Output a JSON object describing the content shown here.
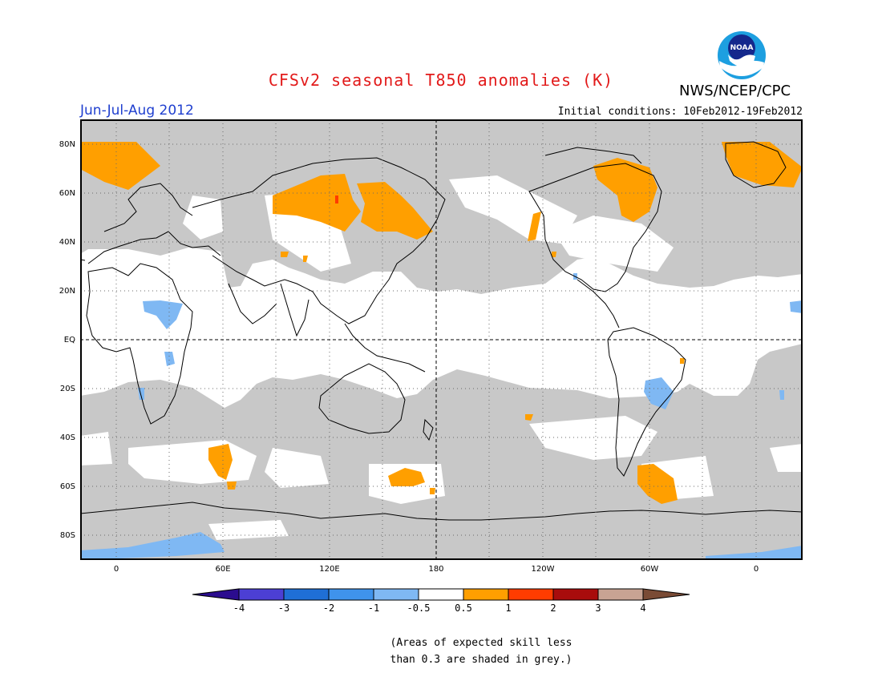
{
  "title": "CFSv2 seasonal T850 anomalies (K)",
  "season": "Jun-Jul-Aug 2012",
  "agency": "NWS/NCEP/CPC",
  "logo_text": "NOAA",
  "initial_conditions": "Initial conditions: 10Feb2012-19Feb2012",
  "lat_labels": [
    "80N",
    "60N",
    "40N",
    "20N",
    "EQ",
    "20S",
    "40S",
    "60S",
    "80S"
  ],
  "lon_labels": [
    "0",
    "60E",
    "120E",
    "180",
    "120W",
    "60W",
    "0"
  ],
  "legend": {
    "tick_labels": [
      "-4",
      "-3",
      "-2",
      "-1",
      "-0.5",
      "0.5",
      "1",
      "2",
      "3",
      "4"
    ],
    "colors": [
      "#2b0c8f",
      "#4c3fd4",
      "#1f6fd6",
      "#3f93ec",
      "#7fb8f3",
      "#ffffff",
      "#ff9f00",
      "#ff3c00",
      "#a80c0c",
      "#c8a393",
      "#7a4b35"
    ]
  },
  "skill_note": [
    "(Areas of expected skill less",
    "than 0.3 are shaded in grey.)"
  ],
  "colors": {
    "grey_low_skill": "#c8c8c8",
    "above_normal": "#ff9f00",
    "below_normal": "#7fb8f3",
    "title": "#e21a1a",
    "season": "#1f3fcf"
  }
}
